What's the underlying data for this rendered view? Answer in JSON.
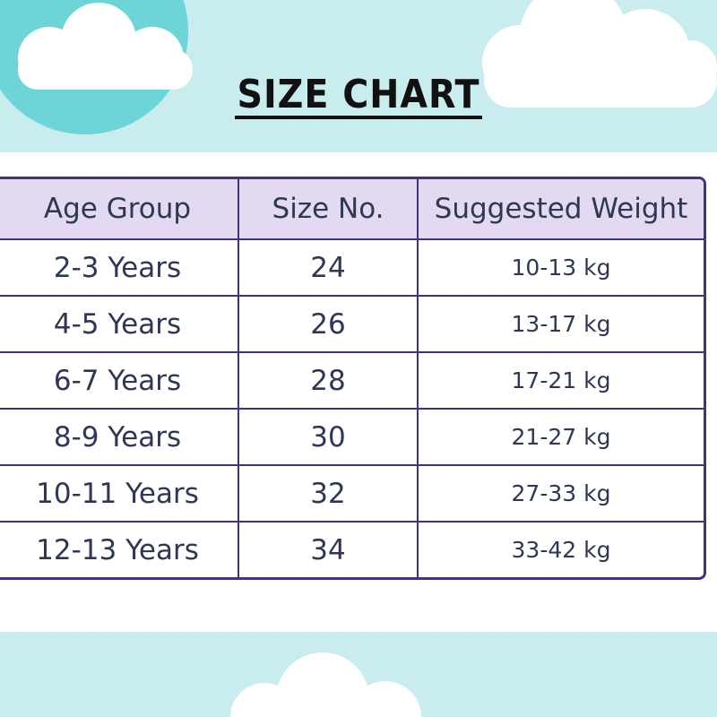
{
  "title": "SIZE CHART",
  "colors": {
    "background_band": "#c9ecef",
    "teal_circle": "#6dd5d8",
    "table_border": "#3f3382",
    "header_bg": "#e3d9f1",
    "text": "#2e3754"
  },
  "table": {
    "headers": [
      "Age Group",
      "Size No.",
      "Suggested Weight"
    ],
    "rows": [
      [
        "2-3 Years",
        "24",
        "10-13 kg"
      ],
      [
        "4-5 Years",
        "26",
        "13-17 kg"
      ],
      [
        "6-7 Years",
        "28",
        "17-21 kg"
      ],
      [
        "8-9 Years",
        "30",
        "21-27 kg"
      ],
      [
        "10-11 Years",
        "32",
        "27-33 kg"
      ],
      [
        "12-13 Years",
        "34",
        "33-42 kg"
      ]
    ]
  }
}
